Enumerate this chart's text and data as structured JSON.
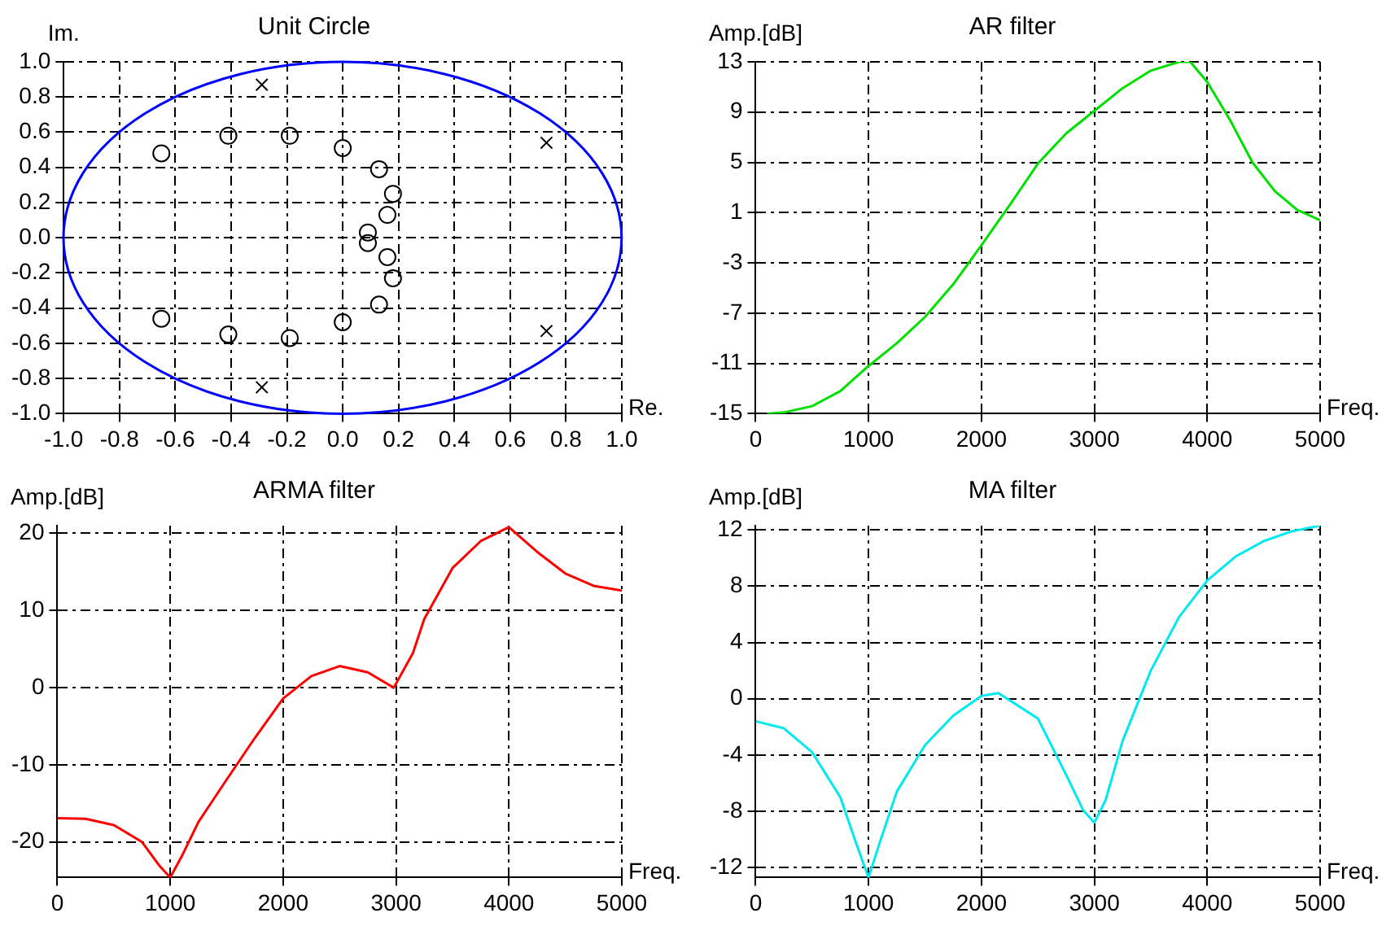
{
  "chart_data": [
    {
      "type": "scatter",
      "title": "Unit Circle",
      "xlabel": "Re.",
      "ylabel": "Im.",
      "xlim": [
        -1,
        1
      ],
      "ylim": [
        -1,
        1
      ],
      "xticks": [
        {
          "value": -1,
          "label": "-1.0"
        },
        {
          "value": -0.8,
          "label": "-0.8"
        },
        {
          "value": -0.6,
          "label": "-0.6"
        },
        {
          "value": -0.4,
          "label": "-0.4"
        },
        {
          "value": -0.2,
          "label": "-0.2"
        },
        {
          "value": 0,
          "label": "0.0"
        },
        {
          "value": 0.2,
          "label": "0.2"
        },
        {
          "value": 0.4,
          "label": "0.4"
        },
        {
          "value": 0.6,
          "label": "0.6"
        },
        {
          "value": 0.8,
          "label": "0.8"
        },
        {
          "value": 1,
          "label": "1.0"
        }
      ],
      "yticks": [
        {
          "value": -1,
          "label": "-1.0"
        },
        {
          "value": -0.8,
          "label": "-0.8"
        },
        {
          "value": -0.6,
          "label": "-0.6"
        },
        {
          "value": -0.4,
          "label": "-0.4"
        },
        {
          "value": -0.2,
          "label": "-0.2"
        },
        {
          "value": 0,
          "label": "0.0"
        },
        {
          "value": 0.2,
          "label": "0.2"
        },
        {
          "value": 0.4,
          "label": "0.4"
        },
        {
          "value": 0.6,
          "label": "0.6"
        },
        {
          "value": 0.8,
          "label": "0.8"
        },
        {
          "value": 1,
          "label": "1.0"
        }
      ],
      "grid": true,
      "series": [
        {
          "type": "scatter",
          "color": "#000000",
          "marker": "circle",
          "x": [
            -0.65,
            -0.41,
            -0.19,
            0.0,
            0.13,
            0.18,
            0.16,
            0.09,
            0.09,
            0.16,
            0.18,
            0.13,
            0.0,
            -0.19,
            -0.41,
            -0.65
          ],
          "values": [
            0.48,
            0.58,
            0.58,
            0.51,
            0.39,
            0.25,
            0.13,
            0.03,
            -0.03,
            -0.11,
            -0.23,
            -0.38,
            -0.48,
            -0.57,
            -0.55,
            -0.46
          ]
        },
        {
          "type": "scatter",
          "color": "#000000",
          "marker": "cross",
          "x": [
            -0.29,
            0.73,
            0.73,
            -0.29
          ],
          "values": [
            0.87,
            0.54,
            -0.53,
            -0.85
          ]
        }
      ]
    },
    {
      "type": "line",
      "title": "AR filter",
      "xlabel": "Freq.",
      "ylabel": "Amp.[dB]",
      "xlim": [
        0,
        5000
      ],
      "xticks": [
        0,
        1000,
        2000,
        3000,
        4000,
        5000
      ],
      "ylim": [
        -15,
        13
      ],
      "yticks": [
        -15,
        -11,
        -7,
        -3,
        1,
        5,
        9,
        13
      ],
      "grid": true,
      "series": [
        {
          "color": "#00e000",
          "x": [
            100,
            250,
            500,
            750,
            1000,
            1250,
            1500,
            1750,
            2000,
            2250,
            2500,
            2750,
            3000,
            3250,
            3500,
            3750,
            3850,
            4000,
            4200,
            4400,
            4600,
            4800,
            5000
          ],
          "values": [
            -15.0,
            -14.9,
            -14.4,
            -13.2,
            -11.2,
            -9.4,
            -7.3,
            -4.7,
            -1.6,
            1.6,
            4.9,
            7.3,
            9.1,
            10.9,
            12.3,
            13.0,
            13.0,
            11.4,
            8.4,
            5.0,
            2.7,
            1.2,
            0.4
          ]
        }
      ]
    },
    {
      "type": "line",
      "title": "ARMA filter",
      "xlabel": "Freq.",
      "ylabel": "Amp.[dB]",
      "xlim": [
        0,
        5000
      ],
      "xticks": [
        0,
        1000,
        2000,
        3000,
        4000,
        5000
      ],
      "ylim": [
        -24.6,
        21
      ],
      "yticks": [
        -20,
        -10,
        0,
        10,
        20
      ],
      "grid": true,
      "series": [
        {
          "color": "#ff0000",
          "x": [
            0,
            250,
            500,
            750,
            900,
            1000,
            1100,
            1250,
            1500,
            1750,
            2000,
            2250,
            2500,
            2750,
            2980,
            3150,
            3250,
            3500,
            3750,
            4000,
            4250,
            4500,
            4750,
            5000
          ],
          "values": [
            -16.9,
            -17.0,
            -17.8,
            -20.0,
            -23.0,
            -24.6,
            -21.9,
            -17.4,
            -11.9,
            -6.5,
            -1.4,
            1.5,
            2.8,
            2.0,
            0.0,
            4.5,
            8.9,
            15.5,
            19.0,
            20.8,
            17.6,
            14.8,
            13.2,
            12.6
          ]
        }
      ]
    },
    {
      "type": "line",
      "title": "MA filter",
      "xlabel": "Freq.",
      "ylabel": "Amp.[dB]",
      "xlim": [
        0,
        5000
      ],
      "xticks": [
        0,
        1000,
        2000,
        3000,
        4000,
        5000
      ],
      "ylim": [
        -12.7,
        12.3
      ],
      "yticks": [
        -12,
        -8,
        -4,
        0,
        4,
        8,
        12
      ],
      "grid": true,
      "series": [
        {
          "color": "#00e8f0",
          "x": [
            0,
            250,
            500,
            750,
            900,
            1000,
            1100,
            1250,
            1500,
            1750,
            2000,
            2150,
            2500,
            2750,
            2900,
            3000,
            3100,
            3250,
            3500,
            3750,
            4000,
            4250,
            4500,
            4750,
            5000
          ],
          "values": [
            -1.6,
            -2.1,
            -3.8,
            -7.0,
            -10.5,
            -12.7,
            -10.2,
            -6.6,
            -3.3,
            -1.2,
            0.2,
            0.4,
            -1.4,
            -5.4,
            -7.9,
            -8.8,
            -7.2,
            -3.0,
            2.0,
            5.8,
            8.4,
            10.1,
            11.2,
            11.9,
            12.3
          ]
        }
      ]
    }
  ]
}
